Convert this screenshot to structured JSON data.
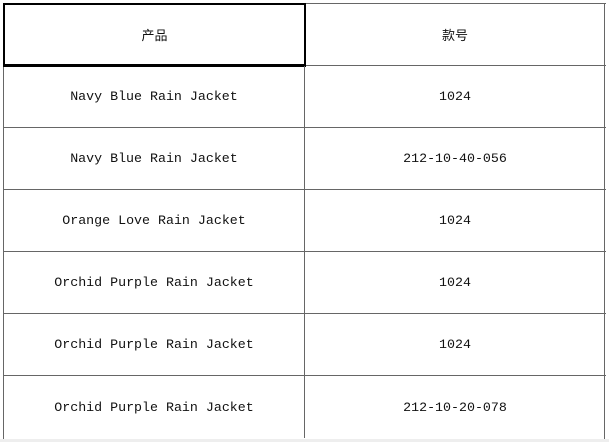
{
  "table": {
    "headers": [
      "产品",
      "款号"
    ],
    "rows": [
      [
        "Navy Blue Rain Jacket",
        "1024"
      ],
      [
        "Navy Blue Rain Jacket",
        "212-10-40-056"
      ],
      [
        "Orange Love Rain Jacket",
        "1024"
      ],
      [
        "Orchid Purple Rain Jacket",
        "1024"
      ],
      [
        "Orchid Purple Rain Jacket",
        "1024"
      ],
      [
        "Orchid Purple Rain Jacket",
        "212-10-20-078"
      ]
    ]
  }
}
